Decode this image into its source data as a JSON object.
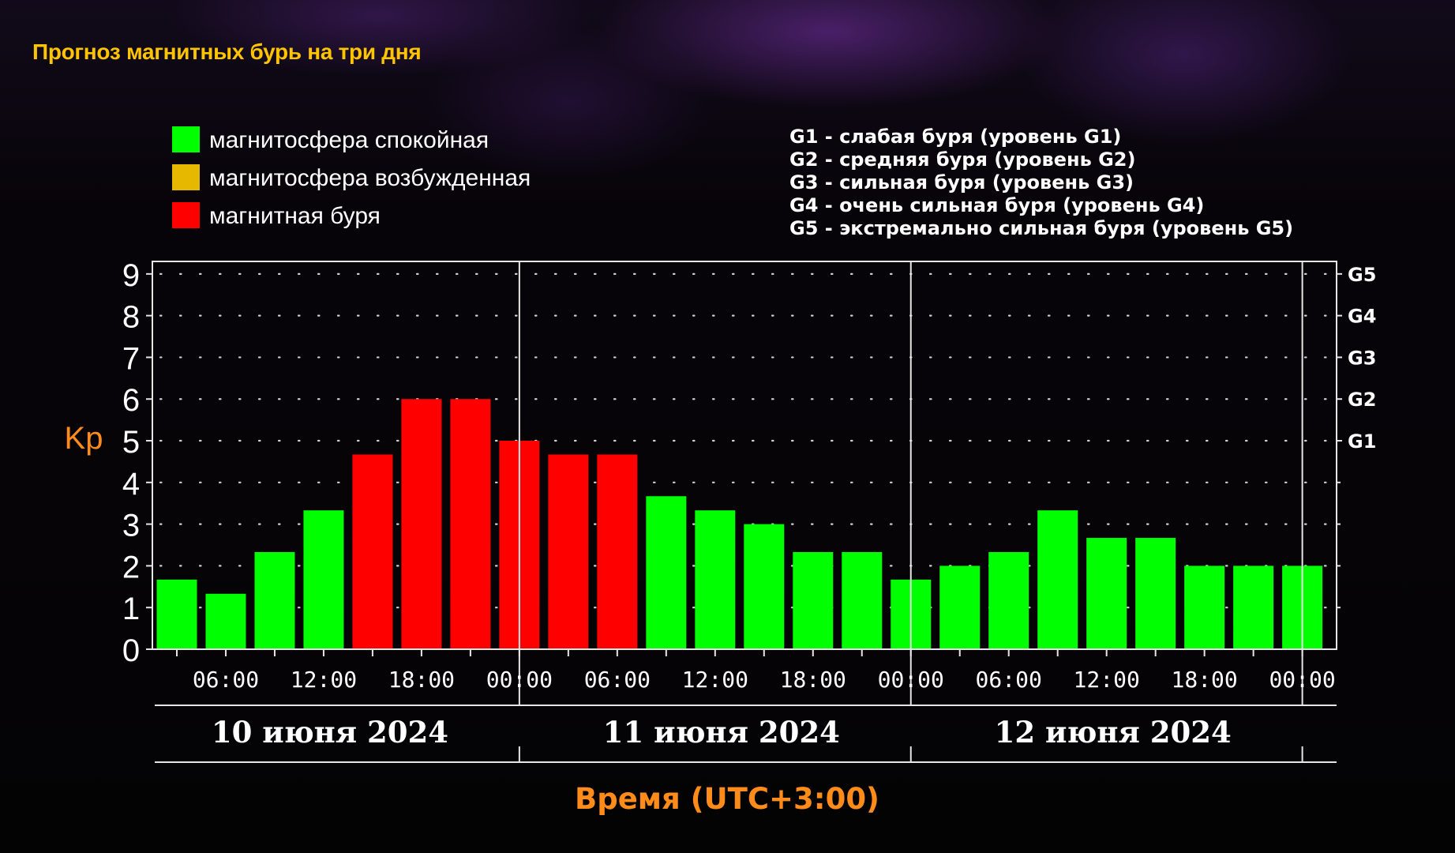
{
  "page": {
    "title": "Прогноз магнитных бурь на три дня"
  },
  "legend": {
    "items": [
      {
        "label": "магнитосфера спокойная",
        "color": "#00ff00"
      },
      {
        "label": "магнитосфера возбужденная",
        "color": "#e6b800"
      },
      {
        "label": "магнитная буря",
        "color": "#ff0000"
      }
    ],
    "g_levels": [
      "G1 - слабая буря (уровень G1)",
      "G2 - средняя буря (уровень G2)",
      "G3 - сильная буря (уровень G3)",
      "G4 - очень сильная буря (уровень G4)",
      "G5 - экстремально сильная буря (уровень G5)"
    ]
  },
  "chart_data": {
    "type": "bar",
    "ylabel": "Kp",
    "xlabel": "Время (UTC+3:00)",
    "ylim": [
      0,
      9.3
    ],
    "y_ticks": [
      "0",
      "1",
      "2",
      "3",
      "4",
      "5",
      "6",
      "7",
      "8",
      "9"
    ],
    "right_ticks": [
      {
        "value": 5,
        "label": "G1"
      },
      {
        "value": 6,
        "label": "G2"
      },
      {
        "value": 7,
        "label": "G3"
      },
      {
        "value": 8,
        "label": "G4"
      },
      {
        "value": 9,
        "label": "G5"
      }
    ],
    "x_ticks": [
      "06:00",
      "12:00",
      "18:00",
      "00:00",
      "06:00",
      "12:00",
      "18:00",
      "00:00",
      "06:00",
      "12:00",
      "18:00",
      "00:00"
    ],
    "days": [
      "10 июня 2024",
      "11 июня 2024",
      "12 июня 2024"
    ],
    "grid": "dotted",
    "status_colors": {
      "quiet": "#00ff00",
      "storm": "#ff0000"
    },
    "bars": [
      {
        "time": "10 июня 2024 03:00",
        "value": 1.67,
        "status": "quiet"
      },
      {
        "time": "10 июня 2024 06:00",
        "value": 1.33,
        "status": "quiet"
      },
      {
        "time": "10 июня 2024 09:00",
        "value": 2.33,
        "status": "quiet"
      },
      {
        "time": "10 июня 2024 12:00",
        "value": 3.33,
        "status": "quiet"
      },
      {
        "time": "10 июня 2024 15:00",
        "value": 4.67,
        "status": "storm"
      },
      {
        "time": "10 июня 2024 18:00",
        "value": 6.0,
        "status": "storm"
      },
      {
        "time": "10 июня 2024 21:00",
        "value": 6.0,
        "status": "storm"
      },
      {
        "time": "11 июня 2024 00:00",
        "value": 5.0,
        "status": "storm"
      },
      {
        "time": "11 июня 2024 03:00",
        "value": 4.67,
        "status": "storm"
      },
      {
        "time": "11 июня 2024 06:00",
        "value": 4.67,
        "status": "storm"
      },
      {
        "time": "11 июня 2024 09:00",
        "value": 3.67,
        "status": "quiet"
      },
      {
        "time": "11 июня 2024 12:00",
        "value": 3.33,
        "status": "quiet"
      },
      {
        "time": "11 июня 2024 15:00",
        "value": 3.0,
        "status": "quiet"
      },
      {
        "time": "11 июня 2024 18:00",
        "value": 2.33,
        "status": "quiet"
      },
      {
        "time": "11 июня 2024 21:00",
        "value": 2.33,
        "status": "quiet"
      },
      {
        "time": "12 июня 2024 00:00",
        "value": 1.67,
        "status": "quiet"
      },
      {
        "time": "12 июня 2024 03:00",
        "value": 2.0,
        "status": "quiet"
      },
      {
        "time": "12 июня 2024 06:00",
        "value": 2.33,
        "status": "quiet"
      },
      {
        "time": "12 июня 2024 09:00",
        "value": 3.33,
        "status": "quiet"
      },
      {
        "time": "12 июня 2024 12:00",
        "value": 2.67,
        "status": "quiet"
      },
      {
        "time": "12 июня 2024 15:00",
        "value": 2.67,
        "status": "quiet"
      },
      {
        "time": "12 июня 2024 18:00",
        "value": 2.0,
        "status": "quiet"
      },
      {
        "time": "12 июня 2024 21:00",
        "value": 2.0,
        "status": "quiet"
      },
      {
        "time": "13 июня 2024 00:00",
        "value": 2.0,
        "status": "quiet"
      }
    ]
  }
}
